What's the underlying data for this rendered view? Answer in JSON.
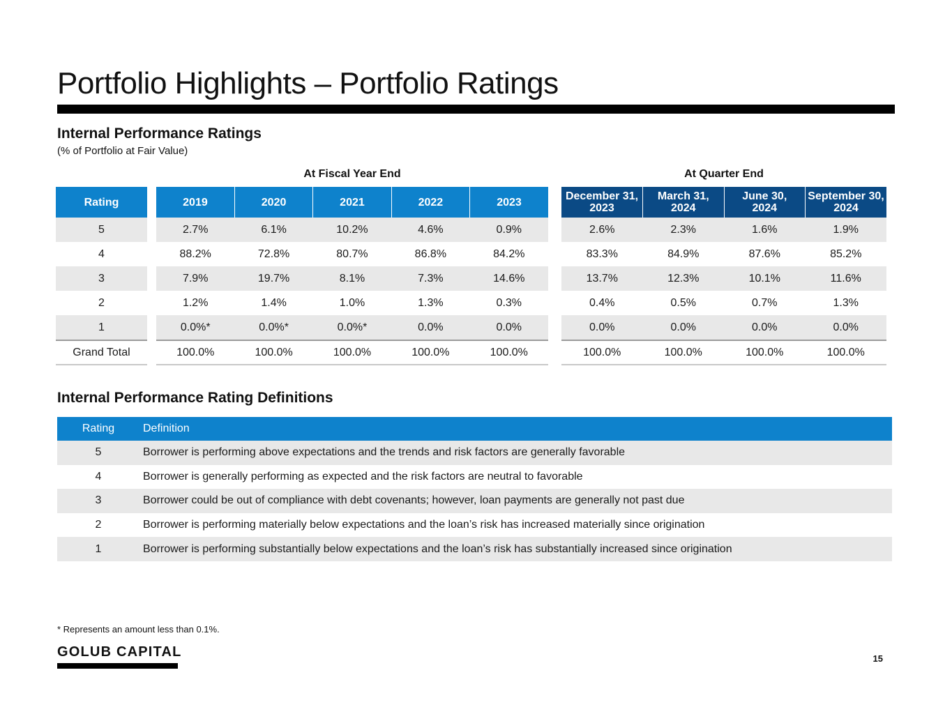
{
  "page": {
    "title": "Portfolio Highlights – Portfolio Ratings",
    "page_number": "15",
    "footnote": "* Represents an amount less than 0.1%.",
    "logo_text": "GOLUB CAPITAL"
  },
  "ratings": {
    "heading": "Internal Performance Ratings",
    "subheading": "(% of Portfolio at Fair Value)",
    "fiscal_group_label": "At Fiscal Year End",
    "quarter_group_label": "At Quarter End",
    "rating_header": "Rating",
    "fiscal_headers": [
      "2019",
      "2020",
      "2021",
      "2022",
      "2023"
    ],
    "quarter_headers": [
      {
        "line1": "December 31,",
        "line2": "2023"
      },
      {
        "line1": "March 31,",
        "line2": "2024"
      },
      {
        "line1": "June 30,",
        "line2": "2024"
      },
      {
        "line1": "September 30,",
        "line2": "2024"
      }
    ],
    "rows": [
      {
        "rating": "5",
        "fiscal": [
          "2.7%",
          "6.1%",
          "10.2%",
          "4.6%",
          "0.9%"
        ],
        "quarter": [
          "2.6%",
          "2.3%",
          "1.6%",
          "1.9%"
        ]
      },
      {
        "rating": "4",
        "fiscal": [
          "88.2%",
          "72.8%",
          "80.7%",
          "86.8%",
          "84.2%"
        ],
        "quarter": [
          "83.3%",
          "84.9%",
          "87.6%",
          "85.2%"
        ]
      },
      {
        "rating": "3",
        "fiscal": [
          "7.9%",
          "19.7%",
          "8.1%",
          "7.3%",
          "14.6%"
        ],
        "quarter": [
          "13.7%",
          "12.3%",
          "10.1%",
          "11.6%"
        ]
      },
      {
        "rating": "2",
        "fiscal": [
          "1.2%",
          "1.4%",
          "1.0%",
          "1.3%",
          "0.3%"
        ],
        "quarter": [
          "0.4%",
          "0.5%",
          "0.7%",
          "1.3%"
        ]
      },
      {
        "rating": "1",
        "fiscal": [
          "0.0%*",
          "0.0%*",
          "0.0%*",
          "0.0%",
          "0.0%"
        ],
        "quarter": [
          "0.0%",
          "0.0%",
          "0.0%",
          "0.0%"
        ]
      },
      {
        "rating": "Grand Total",
        "fiscal": [
          "100.0%",
          "100.0%",
          "100.0%",
          "100.0%",
          "100.0%"
        ],
        "quarter": [
          "100.0%",
          "100.0%",
          "100.0%",
          "100.0%"
        ]
      }
    ]
  },
  "definitions": {
    "heading": "Internal Performance Rating Definitions",
    "col_rating": "Rating",
    "col_definition": "Definition",
    "rows": [
      {
        "rating": "5",
        "text": "Borrower is performing above expectations and the trends and risk factors are generally favorable"
      },
      {
        "rating": "4",
        "text": "Borrower is generally performing as expected and the risk factors are neutral to favorable"
      },
      {
        "rating": "3",
        "text": "Borrower could be out of compliance with debt covenants; however, loan payments are generally not past due"
      },
      {
        "rating": "2",
        "text": "Borrower is performing materially below expectations and the loan’s risk has increased materially since origination"
      },
      {
        "rating": "1",
        "text": "Borrower is performing substantially below expectations and the loan’s risk has substantially increased since origination"
      }
    ]
  }
}
